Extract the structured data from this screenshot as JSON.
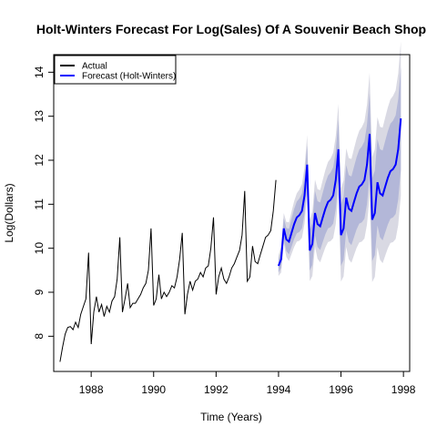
{
  "chart_data": {
    "type": "line",
    "title": "Holt-Winters Forecast For Log(Sales) Of A Souvenir Beach Shop",
    "xlabel": "Time (Years)",
    "ylabel": "Log(Dollars)",
    "xlim": [
      1986.8,
      1998.2
    ],
    "ylim": [
      7.2,
      14.4
    ],
    "x_ticks": [
      1988,
      1990,
      1992,
      1994,
      1996,
      1998
    ],
    "y_ticks": [
      8,
      9,
      10,
      11,
      12,
      13,
      14
    ],
    "legend": {
      "position": "top-left",
      "entries": [
        {
          "label": "Actual",
          "color": "#000000"
        },
        {
          "label": "Forecast (Holt-Winters)",
          "color": "#0000ff"
        }
      ]
    },
    "band_colors": {
      "inner": "#b3b7d8",
      "outer": "#d9d9e3"
    },
    "series": [
      {
        "name": "Actual",
        "color": "#000000",
        "start": 1987.0,
        "step": 0.0833333,
        "values": [
          7.42,
          7.75,
          8.05,
          8.2,
          8.22,
          8.15,
          8.32,
          8.2,
          8.5,
          8.68,
          8.85,
          9.9,
          7.82,
          8.55,
          8.9,
          8.55,
          8.72,
          8.45,
          8.68,
          8.55,
          8.8,
          8.9,
          9.3,
          10.25,
          8.55,
          8.85,
          9.2,
          8.65,
          8.75,
          8.75,
          8.85,
          8.95,
          9.1,
          9.2,
          9.5,
          10.45,
          8.7,
          8.85,
          9.4,
          8.85,
          9.0,
          8.9,
          9.0,
          9.15,
          9.1,
          9.35,
          9.75,
          10.35,
          8.5,
          8.95,
          9.25,
          9.05,
          9.25,
          9.3,
          9.45,
          9.35,
          9.55,
          9.6,
          10.0,
          10.7,
          8.95,
          9.35,
          9.55,
          9.3,
          9.2,
          9.35,
          9.55,
          9.65,
          9.8,
          9.95,
          10.3,
          11.3,
          9.25,
          9.35,
          10.05,
          9.7,
          9.65,
          9.85,
          10.05,
          10.25,
          10.3,
          10.4,
          10.85,
          11.55
        ]
      },
      {
        "name": "Forecast (Holt-Winters)",
        "color": "#0000ff",
        "start": 1994.0,
        "step": 0.0833333,
        "values": [
          9.6,
          9.75,
          10.45,
          10.2,
          10.15,
          10.35,
          10.55,
          10.7,
          10.75,
          10.85,
          11.2,
          11.9,
          9.95,
          10.1,
          10.8,
          10.55,
          10.5,
          10.7,
          10.9,
          11.05,
          11.1,
          11.2,
          11.55,
          12.25,
          10.3,
          10.45,
          11.15,
          10.9,
          10.85,
          11.05,
          11.25,
          11.4,
          11.45,
          11.55,
          11.9,
          12.6,
          10.65,
          10.8,
          11.5,
          11.25,
          11.2,
          11.4,
          11.6,
          11.75,
          11.8,
          11.9,
          12.25,
          12.95
        ],
        "band_80_halfwidth": [
          0.15,
          0.2,
          0.23,
          0.26,
          0.29,
          0.32,
          0.34,
          0.36,
          0.38,
          0.4,
          0.42,
          0.44,
          0.46,
          0.48,
          0.5,
          0.52,
          0.54,
          0.56,
          0.58,
          0.6,
          0.62,
          0.64,
          0.66,
          0.68,
          0.7,
          0.72,
          0.74,
          0.76,
          0.78,
          0.8,
          0.82,
          0.84,
          0.86,
          0.88,
          0.9,
          0.92,
          0.94,
          0.96,
          0.98,
          1.0,
          1.02,
          1.04,
          1.06,
          1.08,
          1.1,
          1.12,
          1.14,
          1.16
        ],
        "band_95_halfwidth": [
          0.23,
          0.3,
          0.35,
          0.4,
          0.44,
          0.48,
          0.52,
          0.55,
          0.58,
          0.61,
          0.64,
          0.67,
          0.7,
          0.73,
          0.76,
          0.79,
          0.82,
          0.85,
          0.88,
          0.91,
          0.94,
          0.97,
          1.0,
          1.03,
          1.06,
          1.09,
          1.12,
          1.15,
          1.18,
          1.21,
          1.24,
          1.27,
          1.3,
          1.33,
          1.36,
          1.39,
          1.42,
          1.45,
          1.48,
          1.51,
          1.54,
          1.57,
          1.6,
          1.63,
          1.66,
          1.69,
          1.72,
          1.75
        ]
      }
    ]
  }
}
